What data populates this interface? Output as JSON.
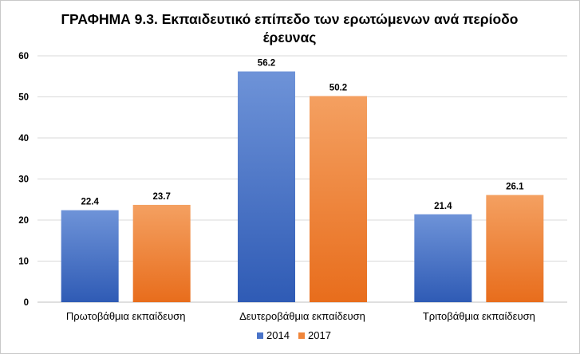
{
  "chart_data": {
    "type": "bar",
    "title_line1": "ΓΡΑΦΗΜΑ 9.3. Εκπαιδευτικό επίπεδο των ερωτώμενων ανά περίοδο",
    "title_line2": "έρευνας",
    "categories": [
      "Πρωτοβάθμια εκπαίδευση",
      "Δευτεροβάθμια εκπαίδευση",
      "Τριτοβάθμια εκπαίδευση"
    ],
    "series": [
      {
        "name": "2014",
        "values": [
          22.4,
          56.2,
          21.4
        ],
        "color": "#4a74c9"
      },
      {
        "name": "2017",
        "values": [
          23.7,
          50.2,
          26.1
        ],
        "color": "#f0853a"
      }
    ],
    "value_labels": [
      [
        "22.4",
        "56.2",
        "21.4"
      ],
      [
        "23.7",
        "50.2",
        "26.1"
      ]
    ],
    "ylim": [
      0,
      60
    ],
    "yticks": [
      "0",
      "10",
      "20",
      "30",
      "40",
      "50",
      "60"
    ],
    "legend_position": "bottom",
    "grid": true,
    "xlabel": "",
    "ylabel": ""
  }
}
